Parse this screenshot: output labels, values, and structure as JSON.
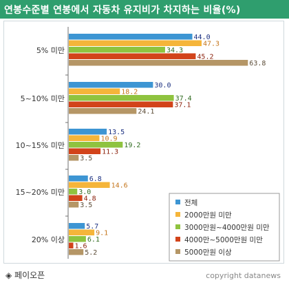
{
  "title": "연봉수준별 연봉에서 자동차 유지비가 차지하는 비율(%)",
  "footer": {
    "left": "◈ 페이오픈",
    "right": "copyright datanews"
  },
  "chart_data": {
    "type": "bar",
    "orientation": "horizontal",
    "categories": [
      "5% 미만",
      "5~10% 미만",
      "10~15% 미만",
      "15~20% 미만",
      "20% 이상"
    ],
    "series": [
      {
        "name": "전체",
        "values": [
          44.0,
          30.0,
          13.5,
          6.8,
          5.7
        ],
        "color": "#3d95d3",
        "label_color": "#1a2f80"
      },
      {
        "name": "2000만원 미만",
        "values": [
          47.3,
          18.2,
          10.9,
          14.6,
          9.1
        ],
        "color": "#f5b53a",
        "label_color": "#c4741a"
      },
      {
        "name": "3000만원~4000만원 미만",
        "values": [
          34.3,
          37.4,
          19.2,
          3.0,
          6.1
        ],
        "color": "#8fc33f",
        "label_color": "#2f6b1f"
      },
      {
        "name": "4000만~5000만원 미만",
        "values": [
          45.2,
          37.1,
          11.3,
          4.8,
          1.6
        ],
        "color": "#d2431a",
        "label_color": "#8a1f0a"
      },
      {
        "name": "5000만원 이상",
        "values": [
          63.8,
          24.1,
          3.5,
          3.5,
          5.2
        ],
        "color": "#b59666",
        "label_color": "#5a4a35"
      }
    ],
    "xlim": [
      0,
      64
    ],
    "legend_position": "bottom-right"
  }
}
